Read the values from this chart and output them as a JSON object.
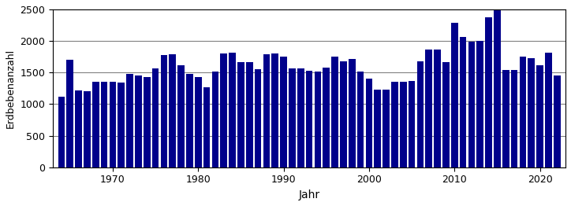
{
  "years": [
    1964,
    1965,
    1966,
    1967,
    1968,
    1969,
    1970,
    1971,
    1972,
    1973,
    1974,
    1975,
    1976,
    1977,
    1978,
    1979,
    1980,
    1981,
    1982,
    1983,
    1984,
    1985,
    1986,
    1987,
    1988,
    1989,
    1990,
    1991,
    1992,
    1993,
    1994,
    1995,
    1996,
    1997,
    1998,
    1999,
    2000,
    2001,
    2002,
    2003,
    2004,
    2005,
    2006,
    2007,
    2008,
    2009,
    2010,
    2011,
    2012,
    2013,
    2014,
    2015,
    2016,
    2017,
    2018,
    2019,
    2020,
    2021,
    2022
  ],
  "values": [
    1120,
    1700,
    1220,
    1210,
    1350,
    1360,
    1350,
    1340,
    1480,
    1450,
    1430,
    1560,
    1780,
    1790,
    1620,
    1480,
    1430,
    1270,
    1510,
    1800,
    1810,
    1670,
    1660,
    1550,
    1790,
    1800,
    1750,
    1560,
    1560,
    1530,
    1510,
    1580,
    1750,
    1680,
    1710,
    1520,
    1410,
    1230,
    1230,
    1360,
    1350,
    1370,
    1680,
    1870,
    1870,
    1660,
    2290,
    2060,
    1990,
    2000,
    2380,
    2500,
    1540,
    1540,
    1750,
    1730,
    1610,
    1810,
    1450
  ],
  "bar_color": "#00008B",
  "ylabel": "Erdbebenanzahl",
  "xlabel": "Jahr",
  "ylim": [
    0,
    2500
  ],
  "yticks": [
    0,
    500,
    1000,
    1500,
    2000,
    2500
  ],
  "xticks": [
    1970,
    1980,
    1990,
    2000,
    2010,
    2020
  ],
  "grid_color": "#808080",
  "background_color": "#ffffff"
}
